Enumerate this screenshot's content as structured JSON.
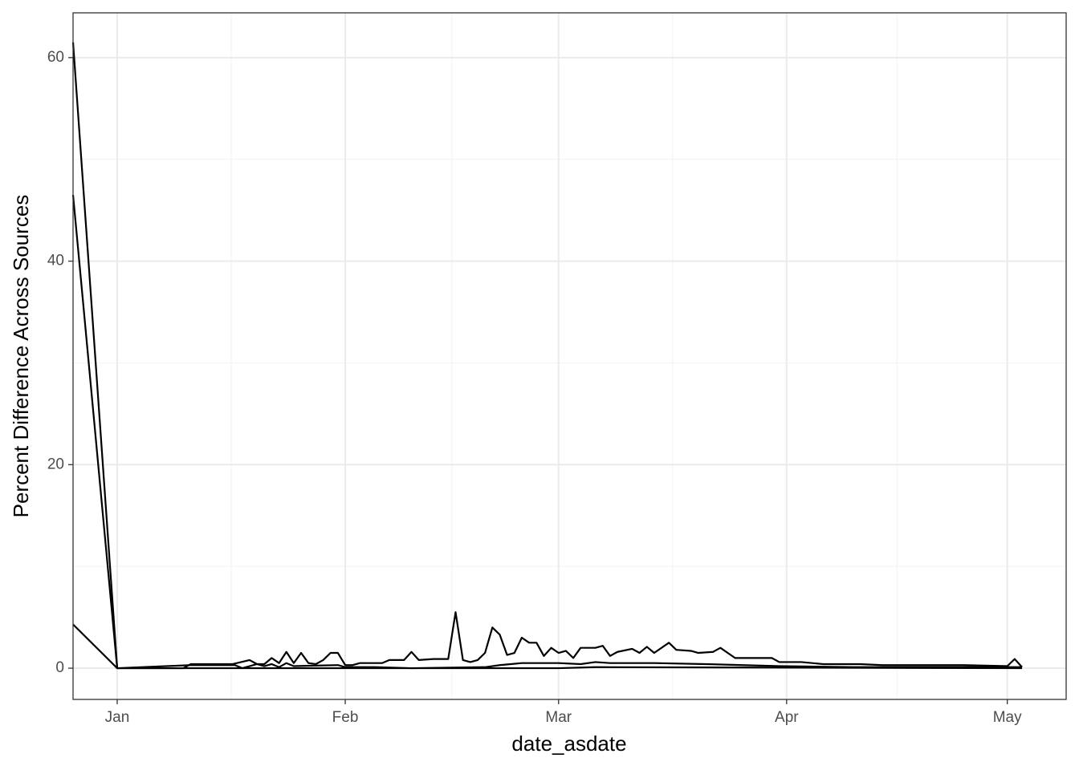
{
  "chart_data": {
    "type": "line",
    "x_label": "date_asdate",
    "y_label": "Percent Difference Across Sources",
    "xlim": [
      -6,
      129
    ],
    "ylim": [
      -3.07,
      64.4
    ],
    "xticks": [
      {
        "value": 0,
        "label": "Jan"
      },
      {
        "value": 31,
        "label": "Feb"
      },
      {
        "value": 60,
        "label": "Mar"
      },
      {
        "value": 91,
        "label": "Apr"
      },
      {
        "value": 121,
        "label": "May"
      }
    ],
    "yticks": [
      0,
      20,
      40,
      60
    ],
    "grid": true,
    "series": [
      {
        "color": "#000000",
        "x": [
          -6,
          0,
          9,
          10,
          15.7,
          18,
          19,
          20,
          21,
          22,
          23,
          24,
          25,
          26,
          27,
          28,
          29,
          30,
          31,
          32,
          33,
          36,
          37,
          39,
          40,
          41,
          43,
          45,
          46,
          47,
          48,
          49,
          50,
          51,
          52,
          53,
          54,
          55,
          56,
          57,
          58,
          59,
          60,
          61,
          62,
          63,
          65,
          66,
          67,
          68,
          70,
          71,
          72,
          73,
          75,
          76,
          78,
          79,
          81,
          82,
          84,
          89,
          90,
          92,
          93,
          96,
          101,
          104,
          115,
          121,
          122,
          123
        ],
        "values": [
          61.5,
          0,
          0,
          0.4,
          0.4,
          0.8,
          0.4,
          0.4,
          1.0,
          0.5,
          1.6,
          0.5,
          1.5,
          0.5,
          0.4,
          0.8,
          1.5,
          1.5,
          0.3,
          0.3,
          0.5,
          0.5,
          0.8,
          0.8,
          1.6,
          0.8,
          0.9,
          0.9,
          5.5,
          0.8,
          0.6,
          0.8,
          1.5,
          4.0,
          3.3,
          1.3,
          1.5,
          3.0,
          2.5,
          2.5,
          1.2,
          2.0,
          1.5,
          1.7,
          1.0,
          2.0,
          2.0,
          2.2,
          1.2,
          1.6,
          1.9,
          1.5,
          2.1,
          1.5,
          2.5,
          1.8,
          1.7,
          1.5,
          1.6,
          2.0,
          1.0,
          1.0,
          0.6,
          0.6,
          0.6,
          0.4,
          0.4,
          0.3,
          0.3,
          0.2,
          0.9,
          0.1
        ]
      },
      {
        "color": "#000000",
        "x": [
          -6,
          0,
          10,
          16,
          17,
          18,
          19,
          20,
          21,
          22,
          23,
          24,
          30,
          31,
          35,
          40,
          50,
          52,
          55,
          60,
          63,
          65,
          67,
          73,
          80,
          90,
          100,
          123
        ],
        "values": [
          46.5,
          0,
          0.3,
          0.3,
          0,
          0.2,
          0.4,
          0.2,
          0.4,
          0.1,
          0.5,
          0.2,
          0.3,
          0.1,
          0.1,
          0,
          0.1,
          0.3,
          0.5,
          0.5,
          0.4,
          0.6,
          0.5,
          0.5,
          0.4,
          0.2,
          0.1,
          0.1
        ]
      },
      {
        "color": "#000000",
        "x": [
          -6,
          0,
          21,
          60,
          65,
          123
        ],
        "values": [
          4.3,
          0,
          0,
          0,
          0.1,
          0
        ]
      }
    ]
  }
}
